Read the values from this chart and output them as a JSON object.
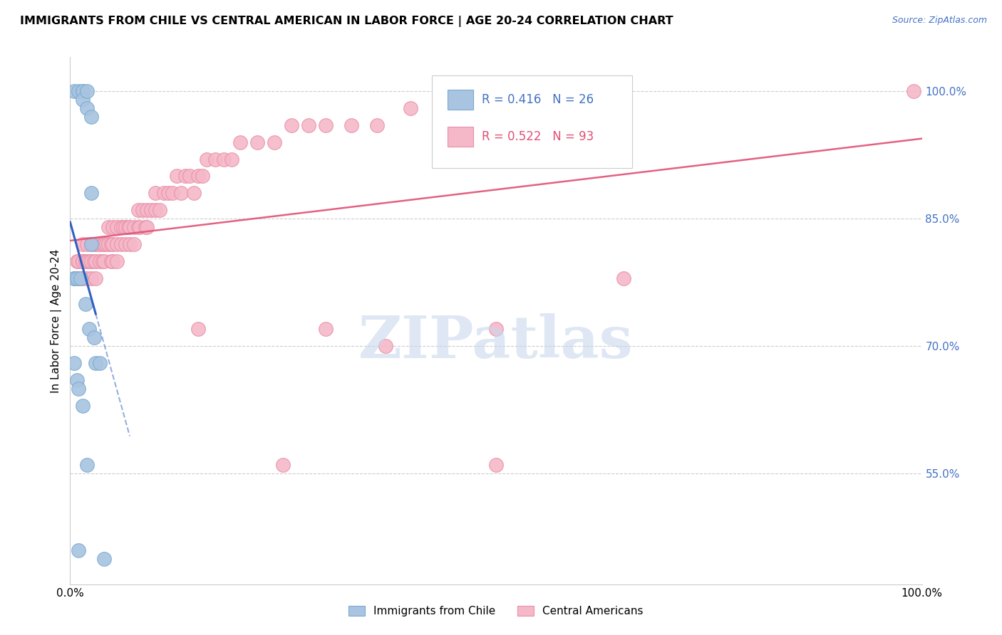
{
  "title": "IMMIGRANTS FROM CHILE VS CENTRAL AMERICAN IN LABOR FORCE | AGE 20-24 CORRELATION CHART",
  "source": "Source: ZipAtlas.com",
  "ylabel": "In Labor Force | Age 20-24",
  "ytick_labels": [
    "55.0%",
    "70.0%",
    "85.0%",
    "100.0%"
  ],
  "ytick_values": [
    0.55,
    0.7,
    0.85,
    1.0
  ],
  "xlim": [
    0.0,
    1.0
  ],
  "ylim": [
    0.42,
    1.04
  ],
  "chile_color": "#A8C4E0",
  "central_color": "#F5B8C8",
  "chile_edge": "#7AAAD0",
  "central_edge": "#E890A8",
  "trendline_chile_color": "#3060C0",
  "trendline_central_color": "#E05075",
  "legend_R_chile": "0.416",
  "legend_N_chile": "26",
  "legend_R_central": "0.522",
  "legend_N_central": "93",
  "watermark_text": "ZIPatlas",
  "watermark_color": "#C8D8EC",
  "legend_text_color_blue": "#4472C4",
  "legend_text_color_pink": "#E05075",
  "right_tick_color": "#4472C4",
  "chile_x": [
    0.005,
    0.01,
    0.015,
    0.015,
    0.015,
    0.02,
    0.02,
    0.025,
    0.025,
    0.025,
    0.005,
    0.005,
    0.008,
    0.012,
    0.018,
    0.022,
    0.028,
    0.005,
    0.008,
    0.01,
    0.015,
    0.02,
    0.03,
    0.035,
    0.01,
    0.04
  ],
  "chile_y": [
    1.0,
    1.0,
    1.0,
    1.0,
    0.99,
    1.0,
    0.98,
    0.97,
    0.88,
    0.82,
    0.78,
    0.78,
    0.78,
    0.78,
    0.75,
    0.72,
    0.71,
    0.68,
    0.66,
    0.65,
    0.63,
    0.56,
    0.68,
    0.68,
    0.46,
    0.45
  ],
  "central_x": [
    0.008,
    0.008,
    0.01,
    0.012,
    0.015,
    0.015,
    0.015,
    0.015,
    0.018,
    0.02,
    0.02,
    0.02,
    0.022,
    0.025,
    0.025,
    0.025,
    0.028,
    0.028,
    0.03,
    0.03,
    0.03,
    0.032,
    0.035,
    0.035,
    0.038,
    0.038,
    0.04,
    0.04,
    0.042,
    0.045,
    0.045,
    0.048,
    0.048,
    0.05,
    0.05,
    0.05,
    0.055,
    0.055,
    0.055,
    0.06,
    0.06,
    0.062,
    0.065,
    0.065,
    0.068,
    0.07,
    0.07,
    0.075,
    0.075,
    0.08,
    0.08,
    0.082,
    0.085,
    0.088,
    0.09,
    0.09,
    0.095,
    0.1,
    0.1,
    0.105,
    0.11,
    0.115,
    0.12,
    0.125,
    0.13,
    0.135,
    0.14,
    0.145,
    0.15,
    0.155,
    0.16,
    0.17,
    0.18,
    0.19,
    0.2,
    0.22,
    0.24,
    0.26,
    0.28,
    0.3,
    0.33,
    0.36,
    0.4,
    0.44,
    0.48,
    0.25,
    0.37,
    0.5,
    0.65,
    0.99,
    0.5,
    0.3,
    0.15
  ],
  "central_y": [
    0.78,
    0.8,
    0.8,
    0.78,
    0.8,
    0.8,
    0.82,
    0.78,
    0.8,
    0.78,
    0.8,
    0.82,
    0.8,
    0.8,
    0.82,
    0.78,
    0.82,
    0.8,
    0.8,
    0.82,
    0.78,
    0.82,
    0.8,
    0.82,
    0.82,
    0.8,
    0.82,
    0.8,
    0.82,
    0.82,
    0.84,
    0.82,
    0.8,
    0.82,
    0.84,
    0.8,
    0.84,
    0.82,
    0.8,
    0.84,
    0.82,
    0.84,
    0.82,
    0.84,
    0.84,
    0.82,
    0.84,
    0.84,
    0.82,
    0.84,
    0.86,
    0.84,
    0.86,
    0.84,
    0.86,
    0.84,
    0.86,
    0.86,
    0.88,
    0.86,
    0.88,
    0.88,
    0.88,
    0.9,
    0.88,
    0.9,
    0.9,
    0.88,
    0.9,
    0.9,
    0.92,
    0.92,
    0.92,
    0.92,
    0.94,
    0.94,
    0.94,
    0.96,
    0.96,
    0.96,
    0.96,
    0.96,
    0.98,
    0.98,
    0.98,
    0.56,
    0.7,
    0.56,
    0.78,
    1.0,
    0.72,
    0.72,
    0.72
  ]
}
